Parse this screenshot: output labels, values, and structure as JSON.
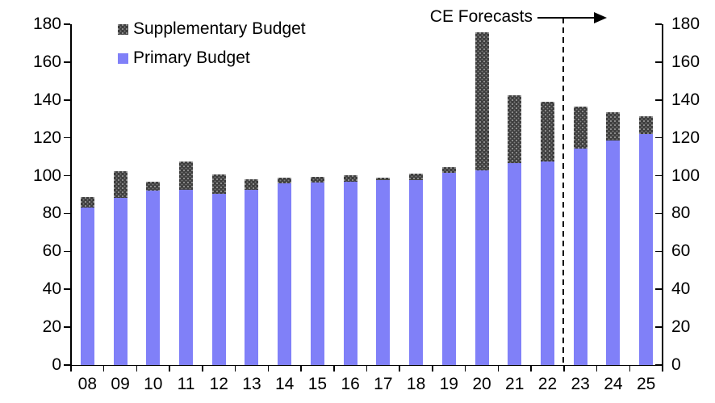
{
  "chart_data": {
    "type": "bar",
    "stacked": true,
    "categories": [
      "08",
      "09",
      "10",
      "11",
      "12",
      "13",
      "14",
      "15",
      "16",
      "17",
      "18",
      "19",
      "20",
      "21",
      "22",
      "23",
      "24",
      "25"
    ],
    "series": [
      {
        "name": "Primary Budget",
        "color": "#8080F8",
        "values": [
          83.1,
          88.5,
          92.3,
          92.4,
          90.3,
          92.6,
          95.9,
          96.3,
          96.7,
          97.5,
          97.7,
          101.5,
          102.7,
          106.6,
          107.6,
          114.4,
          118.5,
          121.9
        ]
      },
      {
        "name": "Supplementary Budget",
        "color": "#3F3F3F",
        "pattern": "dots",
        "values": [
          5.8,
          14.0,
          4.4,
          15.1,
          10.2,
          5.5,
          3.1,
          3.2,
          3.5,
          1.6,
          3.6,
          3.2,
          73.0,
          36.0,
          31.6,
          22.1,
          14.9,
          9.3
        ]
      }
    ],
    "totals": [
      88.9,
      102.5,
      96.7,
      107.5,
      100.5,
      98.1,
      99.0,
      99.5,
      100.2,
      99.1,
      101.3,
      104.7,
      175.7,
      142.6,
      139.2,
      136.5,
      133.4,
      131.2
    ],
    "title": "",
    "xlabel": "",
    "ylabel": "",
    "ylim": [
      0,
      180
    ],
    "ytick_step": 20,
    "grid": false,
    "dual_y_axis": true,
    "legend_position": "top-left",
    "annotation": {
      "text": "CE Forecasts",
      "arrow": "right"
    },
    "forecast_divider_between": [
      "22",
      "23"
    ]
  },
  "colors": {
    "primary_series": "#8080F8",
    "supplementary_series": "#3F3F3F",
    "axis": "#000000",
    "background": "#FFFFFF"
  }
}
